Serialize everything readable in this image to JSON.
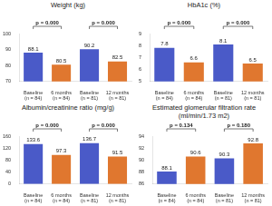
{
  "chart_data": [
    {
      "type": "bar",
      "title": "Weight (kg)",
      "categories": [
        "Baseline (n = 84)",
        "6 months (n = 84)",
        "Baseline (n = 81)",
        "12 months (n = 81)"
      ],
      "values": [
        88.1,
        80.5,
        90.2,
        82.5
      ],
      "colors": [
        "#4a5ac8",
        "#e0772f",
        "#4a5ac8",
        "#e0772f"
      ],
      "ylim": [
        70,
        100
      ],
      "yticks": [
        70,
        80,
        90,
        100
      ],
      "grid": false,
      "data_labels": true,
      "annotations": [
        {
          "text": "p = 0.000",
          "categories": [
            "Baseline (n = 84)",
            "6 months (n = 84)"
          ]
        },
        {
          "text": "p = 0.000",
          "categories": [
            "Baseline (n = 81)",
            "12 months (n = 81)"
          ]
        }
      ]
    },
    {
      "type": "bar",
      "title": "HbA1c (%)",
      "categories": [
        "Baseline (n = 84)",
        "6 months (n = 84)",
        "Baseline (n = 81)",
        "12 months (n = 81)"
      ],
      "values": [
        7.8,
        6.6,
        8.1,
        6.5
      ],
      "colors": [
        "#4a5ac8",
        "#e0772f",
        "#4a5ac8",
        "#e0772f"
      ],
      "ylim": [
        5,
        9
      ],
      "yticks": [
        5,
        6,
        7,
        8,
        9
      ],
      "grid": false,
      "data_labels": true,
      "annotations": [
        {
          "text": "p = 0.000",
          "categories": [
            "Baseline (n = 84)",
            "6 months (n = 84)"
          ]
        },
        {
          "text": "p = 0.000",
          "categories": [
            "Baseline (n = 81)",
            "12 months (n = 81)"
          ]
        }
      ]
    },
    {
      "type": "bar",
      "title": "Albumin/creatinine ratio (mg/g)",
      "categories": [
        "Baseline (n = 84)",
        "6 months (n = 84)",
        "Baseline (n = 81)",
        "12 months (n = 81)"
      ],
      "values": [
        133.6,
        97.3,
        136.7,
        91.5
      ],
      "colors": [
        "#4a5ac8",
        "#e0772f",
        "#4a5ac8",
        "#e0772f"
      ],
      "ylim": [
        0,
        160
      ],
      "yticks": [
        0,
        40,
        80,
        120,
        160
      ],
      "grid": false,
      "data_labels": true,
      "annotations": [
        {
          "text": "p = 0.000",
          "categories": [
            "Baseline (n = 84)",
            "6 months (n = 84)"
          ]
        },
        {
          "text": "p = 0.000",
          "categories": [
            "Baseline (n = 81)",
            "12 months (n = 81)"
          ]
        }
      ]
    },
    {
      "type": "bar",
      "title": "Estimated glomerular filtration rate (ml/min/1.73 m2)",
      "categories": [
        "Baseline (n = 84)",
        "6 months (n = 84)",
        "Baseline (n = 81)",
        "12 months (n = 81)"
      ],
      "values": [
        88.1,
        90.6,
        90.3,
        92.8
      ],
      "colors": [
        "#4a5ac8",
        "#e0772f",
        "#4a5ac8",
        "#e0772f"
      ],
      "ylim": [
        86,
        94
      ],
      "yticks": [
        86,
        88,
        90,
        92,
        94
      ],
      "grid": false,
      "data_labels": true,
      "annotations": [
        {
          "text": "p = 0.134",
          "categories": [
            "Baseline (n = 84)",
            "6 months (n = 84)"
          ]
        },
        {
          "text": "p = 0.180",
          "categories": [
            "Baseline (n = 81)",
            "12 months (n = 81)"
          ]
        }
      ]
    }
  ]
}
